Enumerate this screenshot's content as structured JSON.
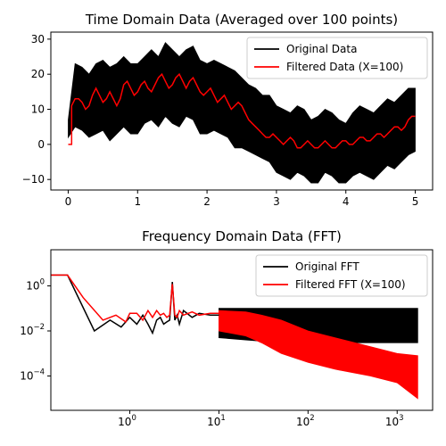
{
  "chart_data": [
    {
      "type": "line",
      "title": "Time Domain Data (Averaged over 100 points)",
      "xlabel": "",
      "ylabel": "",
      "xlim": [
        -0.25,
        5.25
      ],
      "ylim": [
        -13,
        32
      ],
      "x_ticks": [
        0,
        1,
        2,
        3,
        4,
        5
      ],
      "x_tick_labels": [
        "0",
        "1",
        "2",
        "3",
        "4",
        "5"
      ],
      "y_ticks": [
        -10,
        0,
        10,
        20,
        30
      ],
      "y_tick_labels": [
        "−10",
        "0",
        "10",
        "20",
        "30"
      ],
      "grid": false,
      "legend": "top-right",
      "series": [
        {
          "name": "Original Data",
          "color": "#000000",
          "style": "band",
          "x": [
            0,
            0.1,
            0.2,
            0.3,
            0.4,
            0.5,
            0.6,
            0.7,
            0.8,
            0.9,
            1.0,
            1.1,
            1.2,
            1.3,
            1.4,
            1.5,
            1.6,
            1.7,
            1.8,
            1.9,
            2.0,
            2.1,
            2.2,
            2.3,
            2.4,
            2.5,
            2.6,
            2.7,
            2.8,
            2.9,
            3.0,
            3.1,
            3.2,
            3.3,
            3.4,
            3.5,
            3.6,
            3.7,
            3.8,
            3.9,
            4.0,
            4.1,
            4.2,
            4.3,
            4.4,
            4.5,
            4.6,
            4.7,
            4.8,
            4.9,
            5.0
          ],
          "upper": [
            7,
            23,
            22,
            20,
            23,
            24,
            22,
            23,
            25,
            23,
            23,
            25,
            27,
            25,
            29,
            27,
            25,
            27,
            28,
            24,
            23,
            24,
            23,
            22,
            21,
            19,
            17,
            16,
            14,
            14,
            11,
            10,
            9,
            11,
            10,
            7,
            8,
            10,
            9,
            7,
            6,
            9,
            11,
            10,
            9,
            11,
            13,
            12,
            14,
            16,
            16
          ],
          "lower": [
            2,
            5,
            4,
            2,
            3,
            4,
            1,
            3,
            5,
            3,
            3,
            6,
            7,
            5,
            8,
            6,
            5,
            8,
            7,
            3,
            3,
            4,
            3,
            2,
            -1,
            -1,
            -2,
            -3,
            -4,
            -5,
            -8,
            -9,
            -10,
            -8,
            -9,
            -11,
            -11,
            -8,
            -9,
            -11,
            -11,
            -9,
            -8,
            -9,
            -10,
            -8,
            -6,
            -7,
            -5,
            -3,
            -2
          ]
        },
        {
          "name": "Filtered Data (X=100)",
          "color": "#ff0000",
          "x": [
            0,
            0.05,
            0.05,
            0.1,
            0.15,
            0.2,
            0.25,
            0.3,
            0.35,
            0.4,
            0.45,
            0.5,
            0.55,
            0.6,
            0.65,
            0.7,
            0.75,
            0.8,
            0.85,
            0.9,
            0.95,
            1.0,
            1.05,
            1.1,
            1.15,
            1.2,
            1.25,
            1.3,
            1.35,
            1.4,
            1.45,
            1.5,
            1.55,
            1.6,
            1.65,
            1.7,
            1.75,
            1.8,
            1.85,
            1.9,
            1.95,
            2.0,
            2.05,
            2.1,
            2.15,
            2.2,
            2.25,
            2.3,
            2.35,
            2.4,
            2.45,
            2.5,
            2.55,
            2.6,
            2.65,
            2.7,
            2.75,
            2.8,
            2.85,
            2.9,
            2.95,
            3.0,
            3.05,
            3.1,
            3.15,
            3.2,
            3.25,
            3.3,
            3.35,
            3.4,
            3.45,
            3.5,
            3.55,
            3.6,
            3.65,
            3.7,
            3.75,
            3.8,
            3.85,
            3.9,
            3.95,
            4.0,
            4.05,
            4.1,
            4.15,
            4.2,
            4.25,
            4.3,
            4.35,
            4.4,
            4.45,
            4.5,
            4.55,
            4.6,
            4.65,
            4.7,
            4.75,
            4.8,
            4.85,
            4.9,
            4.95,
            5.0
          ],
          "y": [
            0,
            0,
            11,
            13,
            13,
            12,
            10,
            11,
            14,
            16,
            14,
            12,
            13,
            15,
            13,
            11,
            13,
            17,
            18,
            16,
            14,
            15,
            17,
            18,
            16,
            15,
            17,
            19,
            20,
            18,
            16,
            17,
            19,
            20,
            18,
            16,
            18,
            19,
            17,
            15,
            14,
            15,
            16,
            14,
            12,
            13,
            14,
            12,
            10,
            11,
            12,
            11,
            9,
            7,
            6,
            5,
            4,
            3,
            2,
            2,
            3,
            2,
            1,
            0,
            1,
            2,
            1,
            -1,
            -1,
            0,
            1,
            0,
            -1,
            -1,
            0,
            1,
            0,
            -1,
            -1,
            0,
            1,
            1,
            0,
            0,
            1,
            2,
            2,
            1,
            1,
            2,
            3,
            3,
            2,
            3,
            4,
            5,
            5,
            4,
            5,
            7,
            8,
            8
          ]
        }
      ]
    },
    {
      "type": "line",
      "title": "Frequency Domain Data (FFT)",
      "xlabel": "",
      "ylabel": "",
      "xscale": "log",
      "yscale": "log",
      "xlim": [
        0.13,
        2500
      ],
      "ylim": [
        3e-06,
        40
      ],
      "x_ticks": [
        1,
        10,
        100,
        1000
      ],
      "x_tick_labels": [
        "10",
        "10",
        "10",
        "10"
      ],
      "x_tick_exponents": [
        "0",
        "1",
        "2",
        "3"
      ],
      "y_ticks": [
        0.0001,
        0.01,
        1
      ],
      "y_tick_labels": [
        "10",
        "10",
        "10"
      ],
      "y_tick_exponents": [
        "−4",
        "−2",
        "0"
      ],
      "grid": false,
      "legend": "top-right",
      "series": [
        {
          "name": "Original FFT",
          "color": "#000000",
          "x": [
            0.13,
            0.2,
            0.4,
            0.6,
            0.8,
            1.0,
            1.2,
            1.4,
            1.6,
            1.8,
            2.0,
            2.2,
            2.4,
            2.6,
            2.8,
            3.0,
            3.2,
            3.4,
            3.6,
            4.0,
            5.0,
            6.0,
            8.0,
            10.0
          ],
          "y": [
            3,
            3,
            0.01,
            0.03,
            0.015,
            0.04,
            0.02,
            0.05,
            0.02,
            0.008,
            0.03,
            0.04,
            0.02,
            0.025,
            0.03,
            1.5,
            0.03,
            0.05,
            0.02,
            0.08,
            0.04,
            0.06,
            0.05,
            0.05
          ],
          "band": {
            "x": [
              10,
              20,
              50,
              100,
              200,
              500,
              1000,
              1700
            ],
            "upper": [
              0.1,
              0.1,
              0.1,
              0.1,
              0.1,
              0.1,
              0.1,
              0.1
            ],
            "lower": [
              0.005,
              0.004,
              0.003,
              0.003,
              0.003,
              0.003,
              0.003,
              0.003
            ]
          }
        },
        {
          "name": "Filtered FFT (X=100)",
          "color": "#ff0000",
          "x": [
            0.13,
            0.2,
            0.3,
            0.5,
            0.7,
            0.9,
            1.0,
            1.2,
            1.4,
            1.6,
            1.8,
            2.0,
            2.2,
            2.4,
            2.6,
            2.8,
            3.0,
            3.2,
            3.4,
            3.6,
            4.0,
            5.0,
            6.0,
            8.0,
            10.0
          ],
          "y": [
            3,
            3,
            0.3,
            0.03,
            0.05,
            0.025,
            0.06,
            0.06,
            0.03,
            0.08,
            0.04,
            0.08,
            0.05,
            0.06,
            0.04,
            0.05,
            1.2,
            0.05,
            0.04,
            0.08,
            0.05,
            0.07,
            0.05,
            0.06,
            0.06
          ],
          "band": {
            "x": [
              10,
              20,
              30,
              50,
              100,
              200,
              500,
              1000,
              1700
            ],
            "upper": [
              0.08,
              0.07,
              0.05,
              0.03,
              0.01,
              0.005,
              0.002,
              0.001,
              0.0008
            ],
            "lower": [
              0.01,
              0.006,
              0.003,
              0.001,
              0.0004,
              0.0002,
              0.0001,
              5e-05,
              1e-05
            ]
          }
        }
      ]
    }
  ]
}
